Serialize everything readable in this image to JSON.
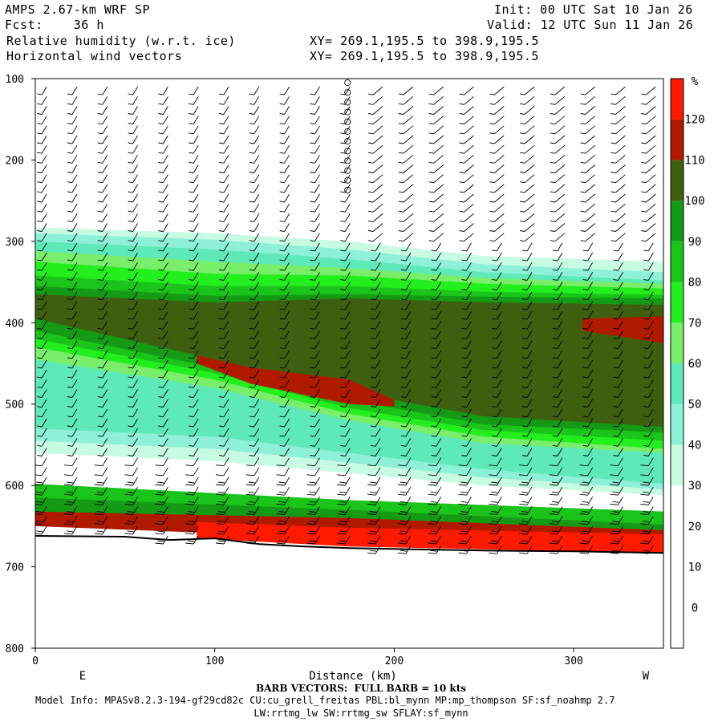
{
  "header": {
    "model": "AMPS 2.67-km WRF SP",
    "forecast": "Fcst:    36 h",
    "field1": "Relative humidity (w.r.t. ice)",
    "field2": "Horizontal wind vectors",
    "init": "Init: 00 UTC Sat 10 Jan 26",
    "valid": "Valid: 12 UTC Sun 11 Jan 26",
    "xy1": "XY= 269.1,195.5 to 398.9,195.5",
    "xy2": "XY= 269.1,195.5 to 398.9,195.5"
  },
  "footer": {
    "barb_note": "BARB VECTORS:  FULL BARB = 10 kts",
    "model_info": "Model Info: MPASv8.2.3-194-gf29cd82c CU:cu_grell_freitas PBL:bl_mynn MP:mp_thompson SF:sf_noahmp 2.7",
    "model_info2": "LW:rrtmg_lw SW:rrtmg_sw SFLAY:sf_mynn"
  },
  "colors": {
    "c10_20": "#ffffff",
    "c20_30": "#ffffff",
    "c30_40": "#c8fbe4",
    "c40_50": "#8ef0d6",
    "c50_60": "#5fe8b8",
    "c60_70": "#78ee6a",
    "c70_80": "#23ee1e",
    "c80_90": "#1bc41b",
    "c90_100": "#149a14",
    "c100_110": "#3f5f10",
    "c110_120": "#b01a00",
    "c120_plus": "#ff1a00",
    "terrain": "#ffffff"
  },
  "chart_data": {
    "type": "heatmap",
    "title": "Relative humidity (w.r.t. ice)",
    "xlabel": "Distance (km)",
    "ylabel": "",
    "xlim": [
      0,
      350
    ],
    "ylim": [
      800,
      100
    ],
    "x_ticks": [
      0,
      100,
      200,
      300
    ],
    "y_ticks": [
      100,
      200,
      300,
      400,
      500,
      600,
      700,
      800
    ],
    "end_labels": {
      "left": "E",
      "right": "W"
    },
    "colorbar": {
      "unit": "%",
      "levels": [
        0,
        10,
        20,
        30,
        40,
        50,
        60,
        70,
        80,
        90,
        100,
        110,
        120
      ]
    },
    "terrain_surface_pressure": [
      {
        "x": 0,
        "p": 662
      },
      {
        "x": 50,
        "p": 663
      },
      {
        "x": 75,
        "p": 667
      },
      {
        "x": 100,
        "p": 665
      },
      {
        "x": 125,
        "p": 672
      },
      {
        "x": 150,
        "p": 675
      },
      {
        "x": 175,
        "p": 677
      },
      {
        "x": 200,
        "p": 678
      },
      {
        "x": 250,
        "p": 680
      },
      {
        "x": 300,
        "p": 681
      },
      {
        "x": 350,
        "p": 683
      }
    ],
    "rh_layers": [
      {
        "range": "30-40",
        "top": [
          [
            0,
            283
          ],
          [
            100,
            290
          ],
          [
            175,
            300
          ],
          [
            250,
            318
          ],
          [
            350,
            325
          ]
        ],
        "bottom": [
          [
            0,
            560
          ],
          [
            100,
            570
          ],
          [
            175,
            585
          ],
          [
            250,
            600
          ],
          [
            350,
            612
          ]
        ]
      },
      {
        "range": "40-50",
        "top": [
          [
            0,
            290
          ],
          [
            100,
            298
          ],
          [
            175,
            310
          ],
          [
            250,
            328
          ],
          [
            350,
            338
          ]
        ],
        "bottom": [
          [
            0,
            545
          ],
          [
            100,
            555
          ],
          [
            175,
            572
          ],
          [
            250,
            590
          ],
          [
            350,
            605
          ]
        ]
      },
      {
        "range": "50-60",
        "top": [
          [
            0,
            300
          ],
          [
            100,
            310
          ],
          [
            175,
            322
          ],
          [
            250,
            338
          ],
          [
            350,
            348
          ]
        ],
        "bottom": [
          [
            0,
            530
          ],
          [
            100,
            540
          ],
          [
            175,
            560
          ],
          [
            250,
            580
          ],
          [
            350,
            598
          ]
        ]
      },
      {
        "range": "60-70",
        "top": [
          [
            0,
            312
          ],
          [
            100,
            325
          ],
          [
            175,
            333
          ],
          [
            250,
            345
          ],
          [
            350,
            352
          ]
        ],
        "bottom": [
          [
            0,
            445
          ],
          [
            100,
            480
          ],
          [
            175,
            520
          ],
          [
            250,
            548
          ],
          [
            350,
            560
          ]
        ]
      },
      {
        "range": "70-80",
        "top": [
          [
            0,
            325
          ],
          [
            100,
            340
          ],
          [
            175,
            342
          ],
          [
            250,
            352
          ],
          [
            350,
            358
          ]
        ],
        "bottom": [
          [
            0,
            430
          ],
          [
            100,
            470
          ],
          [
            175,
            512
          ],
          [
            250,
            540
          ],
          [
            350,
            555
          ]
        ]
      },
      {
        "range": "80-90",
        "top": [
          [
            0,
            342
          ],
          [
            100,
            355
          ],
          [
            175,
            355
          ],
          [
            250,
            362
          ],
          [
            350,
            366
          ]
        ],
        "bottom": [
          [
            0,
            420
          ],
          [
            100,
            462
          ],
          [
            175,
            505
          ],
          [
            250,
            532
          ],
          [
            350,
            545
          ]
        ]
      },
      {
        "range": "90-100",
        "top": [
          [
            0,
            355
          ],
          [
            100,
            367
          ],
          [
            175,
            365
          ],
          [
            250,
            368
          ],
          [
            350,
            370
          ]
        ],
        "bottom": [
          [
            0,
            410
          ],
          [
            100,
            455
          ],
          [
            175,
            495
          ],
          [
            250,
            525
          ],
          [
            350,
            535
          ]
        ]
      },
      {
        "range": "100-110",
        "top": [
          [
            0,
            365
          ],
          [
            100,
            375
          ],
          [
            175,
            370
          ],
          [
            250,
            375
          ],
          [
            350,
            378
          ]
        ],
        "bottom": [
          [
            0,
            395
          ],
          [
            100,
            445
          ],
          [
            175,
            485
          ],
          [
            250,
            515
          ],
          [
            350,
            528
          ]
        ]
      },
      {
        "range": "110-120",
        "top": [
          [
            90,
            440
          ],
          [
            120,
            455
          ],
          [
            175,
            470
          ],
          [
            200,
            495
          ]
        ],
        "bottom": [
          [
            90,
            450
          ],
          [
            120,
            475
          ],
          [
            175,
            500
          ],
          [
            200,
            503
          ]
        ]
      },
      {
        "range": "110-120",
        "top": [
          [
            305,
            395
          ],
          [
            350,
            392
          ]
        ],
        "bottom": [
          [
            305,
            410
          ],
          [
            350,
            425
          ]
        ]
      },
      {
        "range": "80-90",
        "top": [
          [
            0,
            598
          ],
          [
            175,
            618
          ],
          [
            350,
            632
          ]
        ],
        "bottom": [
          [
            0,
            628
          ],
          [
            175,
            640
          ],
          [
            350,
            660
          ]
        ]
      },
      {
        "range": "90-100",
        "top": [
          [
            0,
            615
          ],
          [
            175,
            630
          ],
          [
            350,
            648
          ]
        ],
        "bottom": [
          [
            0,
            640
          ],
          [
            175,
            650
          ],
          [
            350,
            668
          ]
        ]
      },
      {
        "range": "110-120",
        "top": [
          [
            0,
            632
          ],
          [
            175,
            640
          ],
          [
            350,
            655
          ]
        ],
        "bottom": [
          [
            0,
            650
          ],
          [
            175,
            665
          ],
          [
            350,
            675
          ]
        ]
      },
      {
        "range": "120+",
        "top": [
          [
            90,
            645
          ],
          [
            175,
            652
          ],
          [
            350,
            660
          ]
        ],
        "bottom": [
          [
            90,
            665
          ],
          [
            175,
            675
          ],
          [
            350,
            683
          ]
        ]
      }
    ]
  }
}
